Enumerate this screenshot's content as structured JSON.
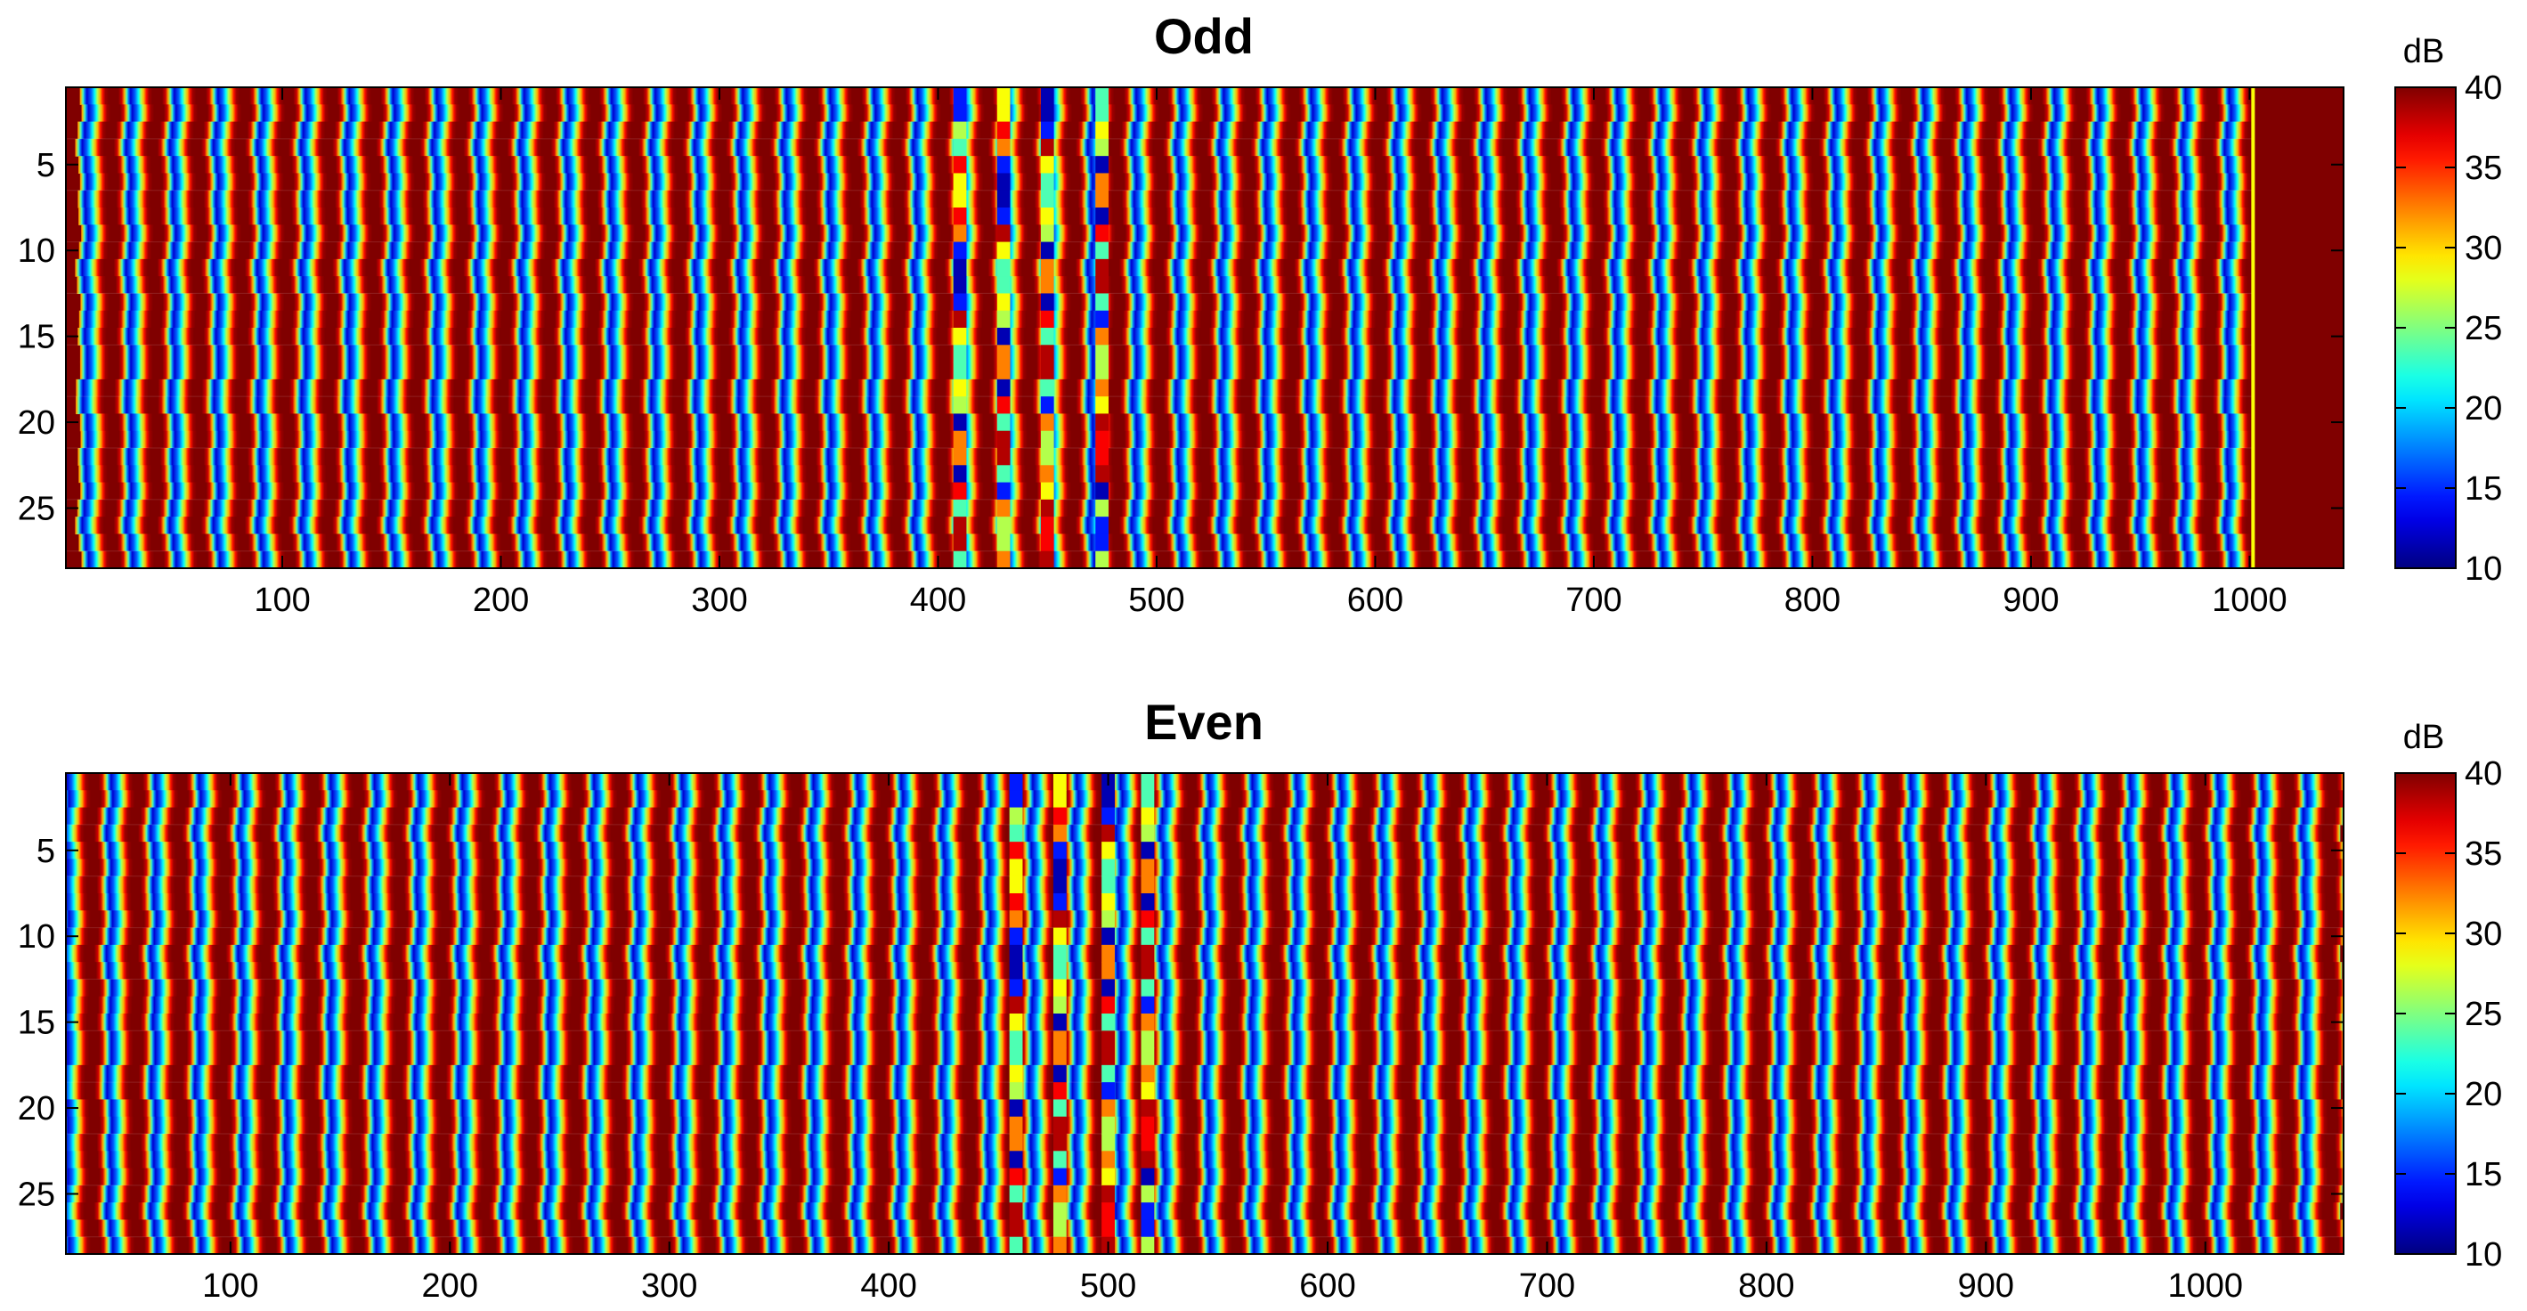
{
  "chart_data": [
    {
      "type": "heatmap",
      "title": "Odd",
      "x_ticks": [
        100,
        200,
        300,
        400,
        500,
        600,
        700,
        800,
        900,
        1000
      ],
      "xlim": [
        1,
        1043
      ],
      "y_ticks": [
        5,
        10,
        15,
        20,
        25
      ],
      "ylim": [
        0.5,
        28.5
      ],
      "y_reversed": true,
      "rows": 28,
      "stripe_period": 20,
      "stripe_start": 10,
      "stripe_end": 1002,
      "saturated_region": [
        1002,
        1043
      ],
      "disturbed_columns": [
        410,
        430,
        450,
        475
      ],
      "colorbar": {
        "label": "dB",
        "min": 10,
        "max": 40,
        "ticks": [
          10,
          15,
          20,
          25,
          30,
          35,
          40
        ],
        "colormap": "jet"
      }
    },
    {
      "type": "heatmap",
      "title": "Even",
      "x_ticks": [
        100,
        200,
        300,
        400,
        500,
        600,
        700,
        800,
        900,
        1000
      ],
      "xlim": [
        25,
        1063
      ],
      "y_ticks": [
        5,
        10,
        15,
        20,
        25
      ],
      "ylim": [
        0.5,
        28.5
      ],
      "y_reversed": true,
      "rows": 28,
      "stripe_period": 20,
      "stripe_start": 25,
      "stripe_end": 1063,
      "saturated_region": null,
      "disturbed_columns": [
        458,
        478,
        500,
        518
      ],
      "colorbar": {
        "label": "dB",
        "min": 10,
        "max": 40,
        "ticks": [
          10,
          15,
          20,
          25,
          30,
          35,
          40
        ],
        "colormap": "jet"
      }
    }
  ]
}
